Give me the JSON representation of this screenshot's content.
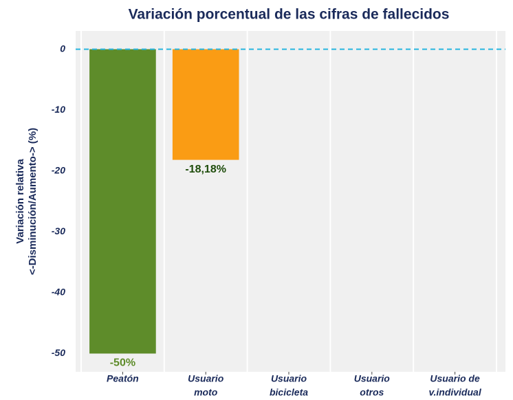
{
  "chart_data": {
    "type": "bar",
    "title": "Variación porcentual de las cifras de fallecidos",
    "y_label": [
      "Variación relativa",
      "<-Disminución/Aumento-> (%)"
    ],
    "categories": [
      [
        "Peatón"
      ],
      [
        "Usuario",
        "moto"
      ],
      [
        "Usuario",
        "bicicleta"
      ],
      [
        "Usuario",
        "otros"
      ],
      [
        "Usuario de",
        "v.individual"
      ]
    ],
    "values": [
      -50,
      -18.18,
      null,
      null,
      null
    ],
    "value_labels": [
      "-50%",
      "-18,18%",
      null,
      null,
      null
    ],
    "colors": [
      "#5e8c2a",
      "#fa9c14",
      null,
      null,
      null
    ],
    "value_label_colors": [
      "#5e8c2a",
      "#1f4d0c",
      null,
      null,
      null
    ],
    "ylim": [
      -53,
      3
    ],
    "yticks": [
      0,
      -10,
      -20,
      -30,
      -40,
      -50
    ],
    "zero_line_color": "#29b6e0"
  }
}
